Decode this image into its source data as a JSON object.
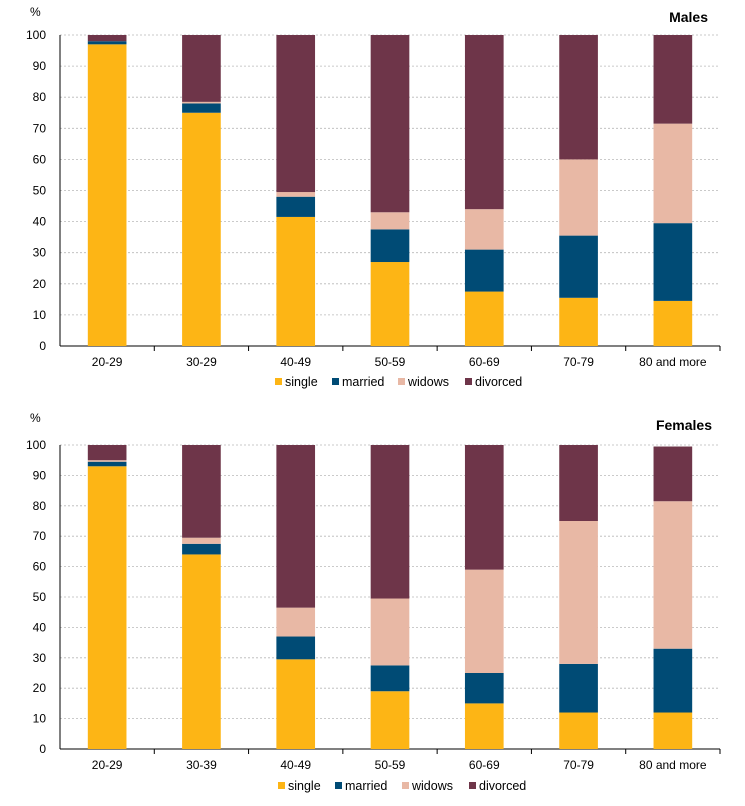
{
  "legend_colors": {
    "single": "#FDB515",
    "married": "#004B75",
    "widows": "#E8B8A5",
    "divorced": "#6E3549"
  },
  "chart_data": [
    {
      "type": "bar",
      "stacked": true,
      "title": "Males",
      "ylabel": "%",
      "ylim": [
        0,
        100
      ],
      "yticks": [
        "0",
        "10",
        "20",
        "30",
        "40",
        "50",
        "60",
        "70",
        "80",
        "90",
        "100"
      ],
      "grid": true,
      "legend": "bottom",
      "categories": [
        "20-29",
        "30-29",
        "40-49",
        "50-59",
        "60-69",
        "70-79",
        "80 and more"
      ],
      "series": [
        {
          "name": "single",
          "values": [
            97,
            75,
            41.5,
            27,
            17.5,
            15.5,
            14.5
          ]
        },
        {
          "name": "married",
          "values": [
            1,
            3,
            6.5,
            10.5,
            13.5,
            20,
            25
          ]
        },
        {
          "name": "widows",
          "values": [
            0,
            0.5,
            1.5,
            5.5,
            13,
            24.5,
            32
          ]
        },
        {
          "name": "divorced",
          "values": [
            2,
            21.5,
            50.5,
            57,
            56,
            40,
            28.5
          ]
        }
      ]
    },
    {
      "type": "bar",
      "stacked": true,
      "title": "Females",
      "ylabel": "%",
      "ylim": [
        0,
        100
      ],
      "yticks": [
        "0",
        "10",
        "20",
        "30",
        "40",
        "50",
        "60",
        "70",
        "80",
        "90",
        "100"
      ],
      "grid": true,
      "legend": "bottom",
      "categories": [
        "20-29",
        "30-39",
        "40-49",
        "50-59",
        "60-69",
        "70-79",
        "80 and more"
      ],
      "series": [
        {
          "name": "single",
          "values": [
            93,
            64,
            29.5,
            19,
            15,
            12,
            12
          ]
        },
        {
          "name": "married",
          "values": [
            1.5,
            3.5,
            7.5,
            8.5,
            10,
            16,
            21
          ]
        },
        {
          "name": "widows",
          "values": [
            0.5,
            2,
            9.5,
            22,
            34,
            47,
            48.5
          ]
        },
        {
          "name": "divorced",
          "values": [
            5,
            30.5,
            53.5,
            50.5,
            41,
            25,
            18
          ]
        }
      ]
    }
  ]
}
